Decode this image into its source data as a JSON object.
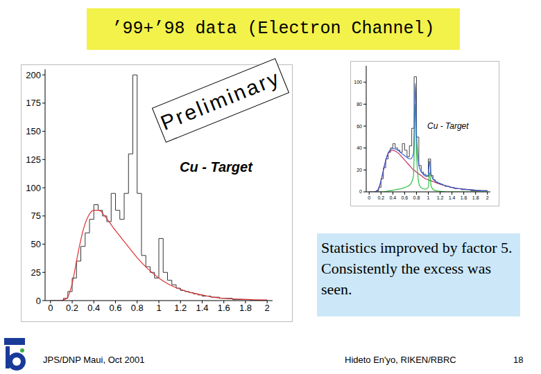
{
  "title": "’99+’98 data (Electron Channel)",
  "stamp": "Preliminary",
  "text_box": "Statistics improved by factor 5. Consistently the excess was seen.",
  "footer": {
    "left": "JPS/DNP Maui, Oct 2001",
    "center": "Hideto En'yo, RIKEN/RBRC",
    "page": 18
  },
  "chart_data": [
    {
      "type": "histogram",
      "annotation": "Cu - Target",
      "color": "#333333",
      "grid": false,
      "xlim": [
        -0.05,
        2.05
      ],
      "ylim": [
        0,
        205
      ],
      "xticks": [
        0,
        0.2,
        0.4,
        0.6,
        0.8,
        1,
        1.2,
        1.4,
        1.6,
        1.8,
        2
      ],
      "yticks": [
        0,
        25,
        50,
        75,
        100,
        125,
        150,
        175,
        200
      ],
      "bins": [
        0,
        0.04,
        0.08,
        0.12,
        0.16,
        0.2,
        0.24,
        0.28,
        0.32,
        0.36,
        0.4,
        0.44,
        0.48,
        0.52,
        0.56,
        0.6,
        0.64,
        0.68,
        0.72,
        0.76,
        0.8,
        0.84,
        0.88,
        0.92,
        0.96,
        1,
        1.04,
        1.08,
        1.12,
        1.16,
        1.2,
        1.24,
        1.28,
        1.32,
        1.36,
        1.4,
        1.44,
        1.48,
        1.52,
        1.56,
        1.6,
        1.64,
        1.68,
        1.72,
        1.76,
        1.8,
        1.84,
        1.88,
        1.92,
        1.96,
        2
      ],
      "counts": [
        0,
        0,
        0,
        2,
        8,
        20,
        35,
        48,
        60,
        72,
        85,
        80,
        75,
        70,
        95,
        80,
        72,
        95,
        130,
        200,
        95,
        40,
        30,
        25,
        20,
        55,
        25,
        18,
        14,
        11,
        9,
        8,
        7,
        6,
        5,
        4,
        4,
        3,
        3,
        2,
        2,
        2,
        1,
        1,
        1,
        1,
        0,
        0,
        0,
        0
      ],
      "series": [
        {
          "type": "line",
          "color": "#e03030",
          "x": [
            0.1,
            0.15,
            0.2,
            0.25,
            0.3,
            0.35,
            0.4,
            0.45,
            0.5,
            0.6,
            0.7,
            0.8,
            0.9,
            1,
            1.1,
            1.2,
            1.3,
            1.4,
            1.5,
            1.6,
            1.8,
            2
          ],
          "values": [
            0,
            2,
            15,
            40,
            62,
            75,
            80,
            80,
            75,
            62,
            50,
            38,
            28,
            20,
            14,
            10,
            7,
            5,
            3,
            2,
            1,
            0.5
          ]
        }
      ]
    },
    {
      "type": "histogram",
      "annotation": "Cu - Target",
      "color": "#444444",
      "grid": false,
      "xlim": [
        -0.05,
        2.05
      ],
      "ylim": [
        0,
        115
      ],
      "xticks": [
        0,
        0.2,
        0.4,
        0.6,
        0.8,
        1,
        1.2,
        1.4,
        1.6,
        1.8,
        2
      ],
      "yticks": [
        0,
        20,
        40,
        60,
        80,
        100
      ],
      "bins": [
        0,
        0.04,
        0.08,
        0.12,
        0.16,
        0.2,
        0.24,
        0.28,
        0.32,
        0.36,
        0.4,
        0.44,
        0.48,
        0.52,
        0.56,
        0.6,
        0.64,
        0.68,
        0.72,
        0.76,
        0.8,
        0.84,
        0.88,
        0.92,
        0.96,
        1,
        1.04,
        1.08,
        1.12,
        1.16,
        1.2,
        1.24,
        1.28,
        1.32,
        1.36,
        1.4,
        1.44,
        1.48,
        1.52,
        1.56,
        1.6,
        1.64,
        1.68,
        1.72,
        1.76,
        1.8,
        1.84,
        1.88,
        1.92,
        1.96,
        2
      ],
      "counts": [
        0,
        0,
        0,
        1,
        4,
        12,
        22,
        30,
        36,
        40,
        44,
        40,
        38,
        36,
        44,
        38,
        32,
        42,
        58,
        105,
        50,
        24,
        18,
        16,
        14,
        30,
        15,
        11,
        9,
        8,
        7,
        6,
        5,
        5,
        4,
        4,
        3,
        3,
        3,
        2,
        2,
        2,
        2,
        1,
        1,
        1,
        1,
        1,
        1,
        1
      ],
      "series": [
        {
          "type": "line",
          "color": "#c03060",
          "x": [
            0.1,
            0.15,
            0.2,
            0.25,
            0.3,
            0.35,
            0.4,
            0.45,
            0.5,
            0.55,
            0.6,
            0.65,
            0.7,
            0.75,
            0.78,
            0.8,
            0.85,
            0.9,
            0.95,
            1,
            1.02,
            1.05,
            1.1,
            1.2,
            1.3,
            1.4,
            1.5,
            1.6,
            1.7,
            1.8,
            1.9,
            2
          ],
          "values": [
            0,
            2,
            10,
            22,
            32,
            37,
            38,
            37,
            35,
            32,
            29,
            26,
            23,
            20,
            19,
            18,
            16,
            14,
            12,
            11,
            10.5,
            10,
            9,
            7,
            5.5,
            4,
            3,
            2.5,
            2,
            1.5,
            1,
            1
          ]
        },
        {
          "type": "line",
          "color": "#30c040",
          "x": [
            0.1,
            0.15,
            0.2,
            0.25,
            0.3,
            0.35,
            0.4,
            0.45,
            0.5,
            0.55,
            0.6,
            0.65,
            0.7,
            0.75,
            0.78,
            0.8,
            0.85,
            0.9,
            0.95,
            1,
            1.02,
            1.05,
            1.1,
            1.2,
            1.3,
            1.4,
            1.5,
            1.6,
            1.7,
            1.8,
            1.9,
            2
          ],
          "values": [
            0,
            0,
            0,
            0,
            0.5,
            1,
            1.5,
            2,
            2.5,
            3,
            4,
            5,
            7,
            15,
            80,
            35,
            6,
            3,
            2.5,
            4,
            18,
            5,
            1.5,
            0.5,
            0,
            0,
            0,
            0,
            0,
            0,
            0,
            0
          ]
        },
        {
          "type": "line",
          "color": "#3060d0",
          "x": [
            0.1,
            0.15,
            0.2,
            0.25,
            0.3,
            0.35,
            0.4,
            0.45,
            0.5,
            0.55,
            0.6,
            0.65,
            0.7,
            0.75,
            0.78,
            0.8,
            0.85,
            0.9,
            0.95,
            1,
            1.02,
            1.05,
            1.1,
            1.2,
            1.3,
            1.4,
            1.5,
            1.6,
            1.7,
            1.8,
            1.9,
            2
          ],
          "values": [
            0,
            2,
            10,
            22,
            32.5,
            38,
            39.5,
            39,
            37.5,
            35,
            33,
            31,
            30,
            35,
            99,
            53,
            22,
            17,
            14.5,
            15,
            28.5,
            15,
            10.5,
            7.5,
            5.5,
            4,
            3,
            2.5,
            2,
            1.5,
            1,
            1
          ]
        }
      ]
    }
  ]
}
